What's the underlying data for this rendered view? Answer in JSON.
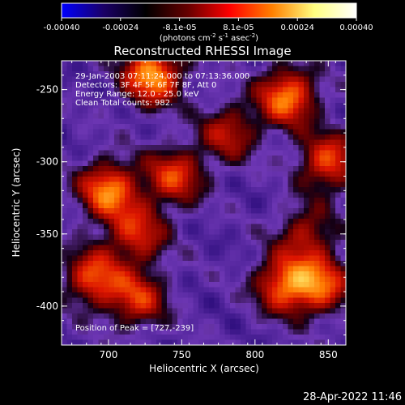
{
  "chart_data": {
    "type": "heatmap",
    "title": "Reconstructed RHESSI Image",
    "xlabel": "Heliocentric X (arcsec)",
    "ylabel": "Heliocentric Y (arcsec)",
    "x_ticks": [
      700,
      750,
      800,
      850
    ],
    "y_ticks": [
      -250,
      -300,
      -350,
      -400
    ],
    "xlim": [
      668,
      862
    ],
    "ylim": [
      -427,
      -230
    ],
    "colorbar": {
      "ticks": [
        "-0.00040",
        "-0.00024",
        "-8.1e-05",
        "8.1e-05",
        "0.00024",
        "0.00040"
      ],
      "range": [
        -0.0004,
        0.0004
      ],
      "units_prefix": "(photons cm",
      "units_sup1": "-2",
      "units_mid1": " s",
      "units_sup2": "-1",
      "units_mid2": " asec",
      "units_sup3": "-2",
      "units_suffix": ")",
      "colors": [
        "#0000ff",
        "#1a0066",
        "#000000",
        "#660000",
        "#ff0000",
        "#ff8000",
        "#ffff80",
        "#ffffff"
      ]
    },
    "annotations": [
      "29-Jan-2003 07:11:24.000 to 07:13:36.000",
      "Detectors: 3F 4F 5F 6F 7F 8F, Att 0",
      "Energy Range: 12.0 - 25.0 keV",
      "Clean    Total counts: 982."
    ],
    "peak_label": "Position of Peak = [727,-239]",
    "bright_regions": [
      {
        "x": 700,
        "y": -320,
        "intensity": 0.00036
      },
      {
        "x": 690,
        "y": -380,
        "intensity": 0.0003
      },
      {
        "x": 730,
        "y": -240,
        "intensity": 0.0004
      },
      {
        "x": 822,
        "y": -255,
        "intensity": 0.00036
      },
      {
        "x": 850,
        "y": -300,
        "intensity": 0.0003
      },
      {
        "x": 745,
        "y": -310,
        "intensity": 0.00028
      },
      {
        "x": 720,
        "y": -395,
        "intensity": 0.00026
      },
      {
        "x": 820,
        "y": -385,
        "intensity": 0.00032
      },
      {
        "x": 845,
        "y": -385,
        "intensity": 0.0003
      },
      {
        "x": 782,
        "y": -280,
        "intensity": 0.00022
      },
      {
        "x": 720,
        "y": -350,
        "intensity": 0.00025
      },
      {
        "x": 835,
        "y": -350,
        "intensity": 0.0002
      }
    ]
  },
  "footer": {
    "timestamp": "28-Apr-2022 11:46"
  }
}
